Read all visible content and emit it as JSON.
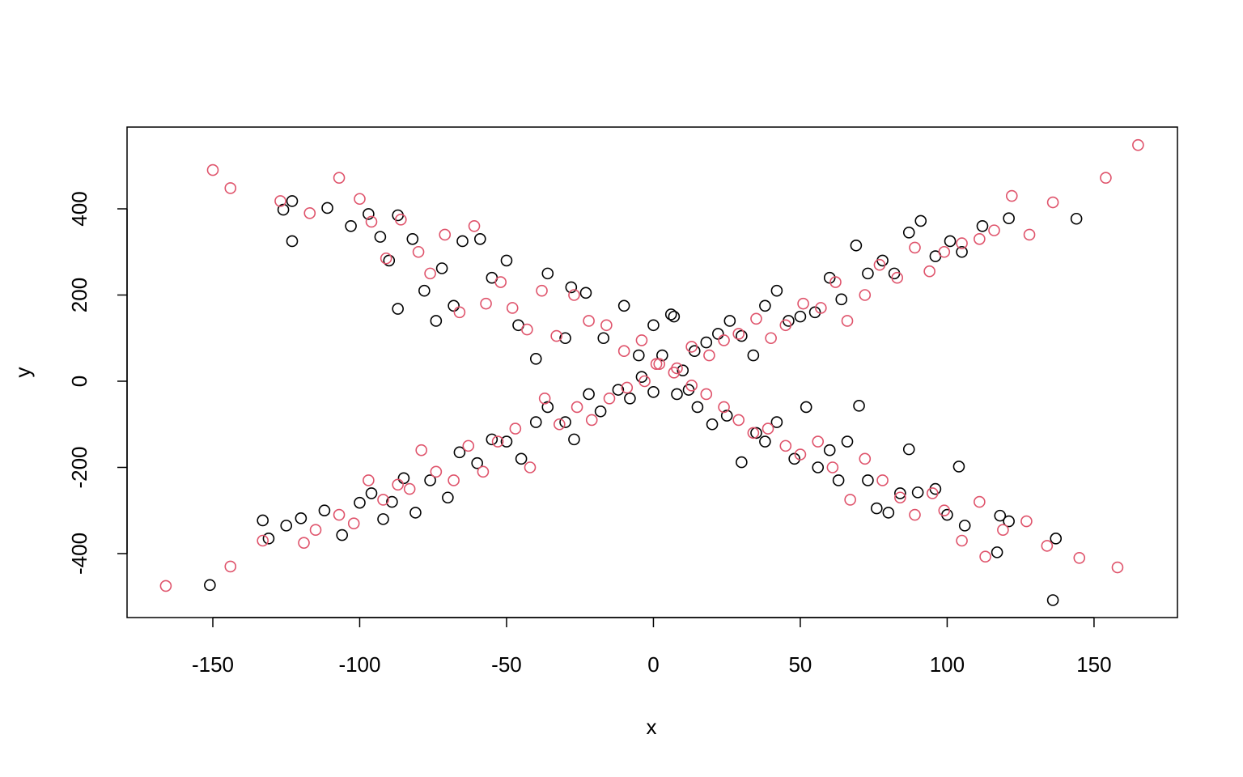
{
  "chart_data": {
    "type": "scatter",
    "x_label": "x",
    "y_label": "y",
    "xlim": [
      -179.2,
      178.4
    ],
    "ylim": [
      -548.4,
      589.7
    ],
    "xticks": [
      -150,
      -100,
      -50,
      0,
      50,
      100,
      150
    ],
    "yticks": [
      -400,
      -200,
      0,
      200,
      400
    ],
    "series": [
      {
        "color": "#000000",
        "x": [
          -151,
          -133,
          -131,
          -125,
          -120,
          -112,
          -106,
          -100,
          -96,
          -92,
          -89,
          -85,
          -81,
          -76,
          -70,
          -66,
          -60,
          -55,
          -50,
          -45,
          -40,
          -36,
          -30,
          -27,
          -22,
          -18,
          -12,
          -8,
          -4,
          0,
          3,
          7,
          10,
          14,
          18,
          22,
          26,
          30,
          34,
          38,
          42,
          46,
          50,
          55,
          60,
          64,
          69,
          73,
          78,
          82,
          87,
          91,
          96,
          101,
          105,
          112,
          121,
          144,
          -126,
          -123,
          -123,
          -111,
          -103,
          -97,
          -93,
          -90,
          -87,
          -87,
          -82,
          -78,
          -74,
          -72,
          -68,
          -65,
          -59,
          -55,
          -50,
          -46,
          -40,
          -36,
          -30,
          -28,
          -23,
          -17,
          -10,
          -5,
          0,
          6,
          8,
          12,
          15,
          20,
          25,
          30,
          35,
          38,
          42,
          48,
          52,
          56,
          60,
          63,
          66,
          70,
          73,
          76,
          80,
          84,
          87,
          90,
          96,
          100,
          104,
          106,
          117,
          118,
          121,
          136,
          137
        ],
        "values": [
          -473,
          -323,
          -365,
          -335,
          -318,
          -300,
          -357,
          -282,
          -260,
          -320,
          -280,
          -225,
          -305,
          -230,
          -270,
          -165,
          -190,
          -135,
          -140,
          -180,
          -95,
          -60,
          -95,
          -135,
          -30,
          -70,
          -20,
          -40,
          10,
          -25,
          60,
          150,
          25,
          70,
          90,
          110,
          140,
          105,
          60,
          175,
          210,
          140,
          150,
          160,
          240,
          190,
          315,
          250,
          280,
          250,
          345,
          372,
          290,
          325,
          300,
          360,
          378,
          377,
          398,
          325,
          418,
          402,
          360,
          388,
          335,
          280,
          385,
          168,
          330,
          210,
          140,
          262,
          175,
          325,
          330,
          240,
          280,
          130,
          52,
          250,
          100,
          218,
          205,
          100,
          175,
          60,
          130,
          155,
          -30,
          -20,
          -60,
          -100,
          -80,
          -188,
          -120,
          -140,
          -95,
          -180,
          -60,
          -200,
          -160,
          -230,
          -140,
          -57,
          -230,
          -295,
          -305,
          -260,
          -158,
          -258,
          -250,
          -310,
          -198,
          -335,
          -397,
          -312,
          -325,
          -508,
          -365
        ]
      },
      {
        "color": "#df536b",
        "x": [
          -166,
          -144,
          -133,
          -119,
          -115,
          -107,
          -102,
          -97,
          -92,
          -87,
          -83,
          -79,
          -74,
          -68,
          -63,
          -58,
          -53,
          -47,
          -42,
          -37,
          -32,
          -26,
          -21,
          -15,
          -9,
          -3,
          2,
          8,
          13,
          19,
          24,
          29,
          35,
          40,
          45,
          51,
          57,
          62,
          66,
          72,
          77,
          83,
          89,
          94,
          99,
          105,
          111,
          116,
          122,
          128,
          136,
          154,
          165,
          -150,
          -144,
          -127,
          -117,
          -107,
          -100,
          -96,
          -91,
          -86,
          -80,
          -76,
          -71,
          -66,
          -61,
          -57,
          -52,
          -48,
          -43,
          -38,
          -33,
          -27,
          -22,
          -16,
          -10,
          -4,
          1,
          7,
          13,
          18,
          24,
          29,
          34,
          39,
          45,
          50,
          56,
          61,
          67,
          72,
          78,
          84,
          89,
          95,
          99,
          105,
          111,
          113,
          119,
          127,
          134,
          145,
          158
        ],
        "values": [
          -475,
          -430,
          -370,
          -375,
          -345,
          -310,
          -330,
          -230,
          -275,
          -240,
          -250,
          -160,
          -210,
          -230,
          -150,
          -210,
          -140,
          -110,
          -200,
          -40,
          -100,
          -60,
          -90,
          -40,
          -15,
          0,
          40,
          30,
          80,
          60,
          95,
          110,
          145,
          100,
          130,
          180,
          170,
          230,
          140,
          200,
          270,
          240,
          310,
          255,
          300,
          320,
          330,
          350,
          430,
          340,
          415,
          472,
          548,
          490,
          448,
          418,
          390,
          472,
          423,
          370,
          285,
          375,
          300,
          250,
          340,
          160,
          360,
          180,
          230,
          170,
          120,
          210,
          105,
          200,
          140,
          130,
          70,
          95,
          40,
          20,
          -10,
          -30,
          -60,
          -90,
          -120,
          -110,
          -150,
          -170,
          -140,
          -200,
          -275,
          -180,
          -230,
          -270,
          -310,
          -260,
          -300,
          -370,
          -280,
          -407,
          -345,
          -325,
          -382,
          -410,
          -432
        ]
      }
    ]
  }
}
